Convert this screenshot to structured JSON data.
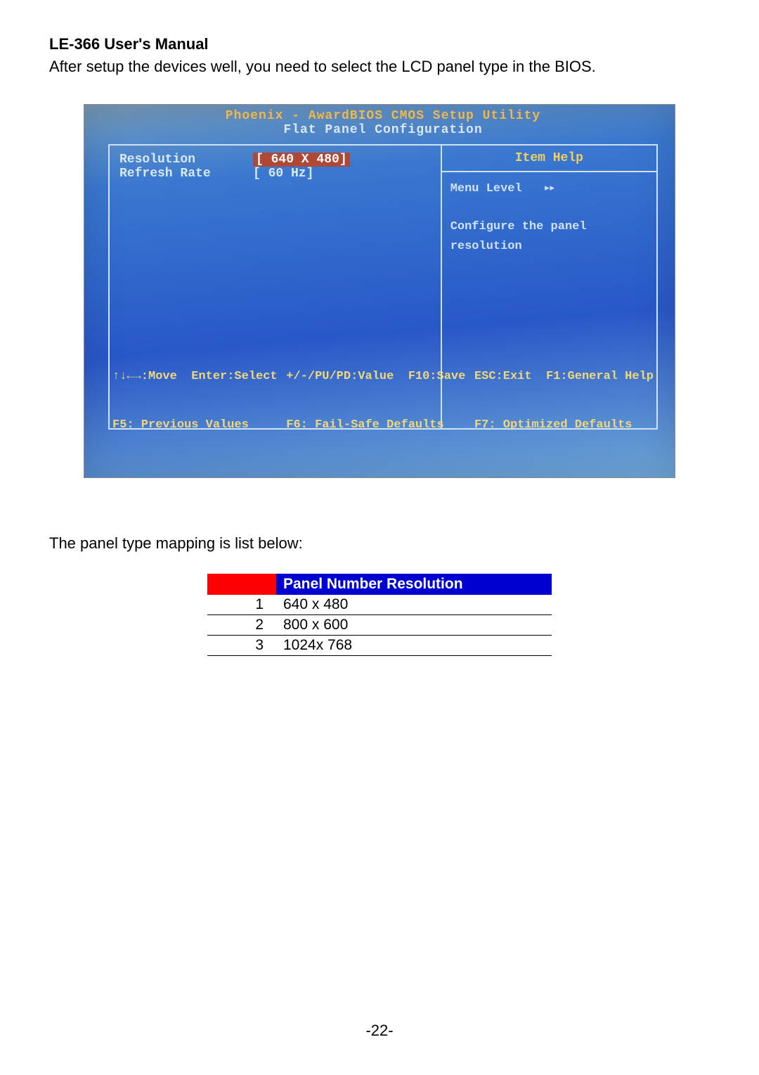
{
  "doc": {
    "header": "LE-366 User's Manual",
    "intro": "After setup the devices well, you need to select the LCD panel type in the BIOS.",
    "caption": "The panel type mapping is list below:",
    "page_number": "-22-"
  },
  "bios": {
    "title": "Phoenix - AwardBIOS CMOS Setup Utility",
    "subtitle": "Flat Panel Configuration",
    "settings": [
      {
        "label": "Resolution",
        "value": "[ 640 X  480]",
        "highlighted": true
      },
      {
        "label": "Refresh Rate",
        "value": "[ 60 Hz]",
        "highlighted": false
      }
    ],
    "help": {
      "title": "Item Help",
      "menu_level_label": "Menu Level",
      "menu_level_arrows": "▸▸",
      "text": "Configure the panel resolution"
    },
    "footer": {
      "c1_l1": "↑↓←→:Move  Enter:Select",
      "c1_l2": "F5: Previous Values",
      "c2_l1": "+/-/PU/PD:Value  F10:Save",
      "c2_l2": "F6: Fail-Safe Defaults",
      "c3_l1": "ESC:Exit  F1:General Help",
      "c3_l2": "F7: Optimized Defaults"
    },
    "colors": {
      "title_color": "#f0b84a",
      "text_color": "#d8e8f8",
      "border_color": "#cfe2f4",
      "highlight_bg": "#b04838",
      "footer_color": "#f0d878",
      "bg_gradient_top": "#7a9ab5",
      "bg_gradient_bottom": "#6fa8d8"
    }
  },
  "table": {
    "header_number_bg": "#ff0000",
    "header_res_bg": "#0000d0",
    "header_text_color": "#ffffff",
    "columns": [
      "",
      "Panel Number Resolution"
    ],
    "rows": [
      {
        "num": "1",
        "res": "640 x 480"
      },
      {
        "num": "2",
        "res": "800 x 600"
      },
      {
        "num": "3",
        "res": "1024x 768"
      }
    ]
  }
}
